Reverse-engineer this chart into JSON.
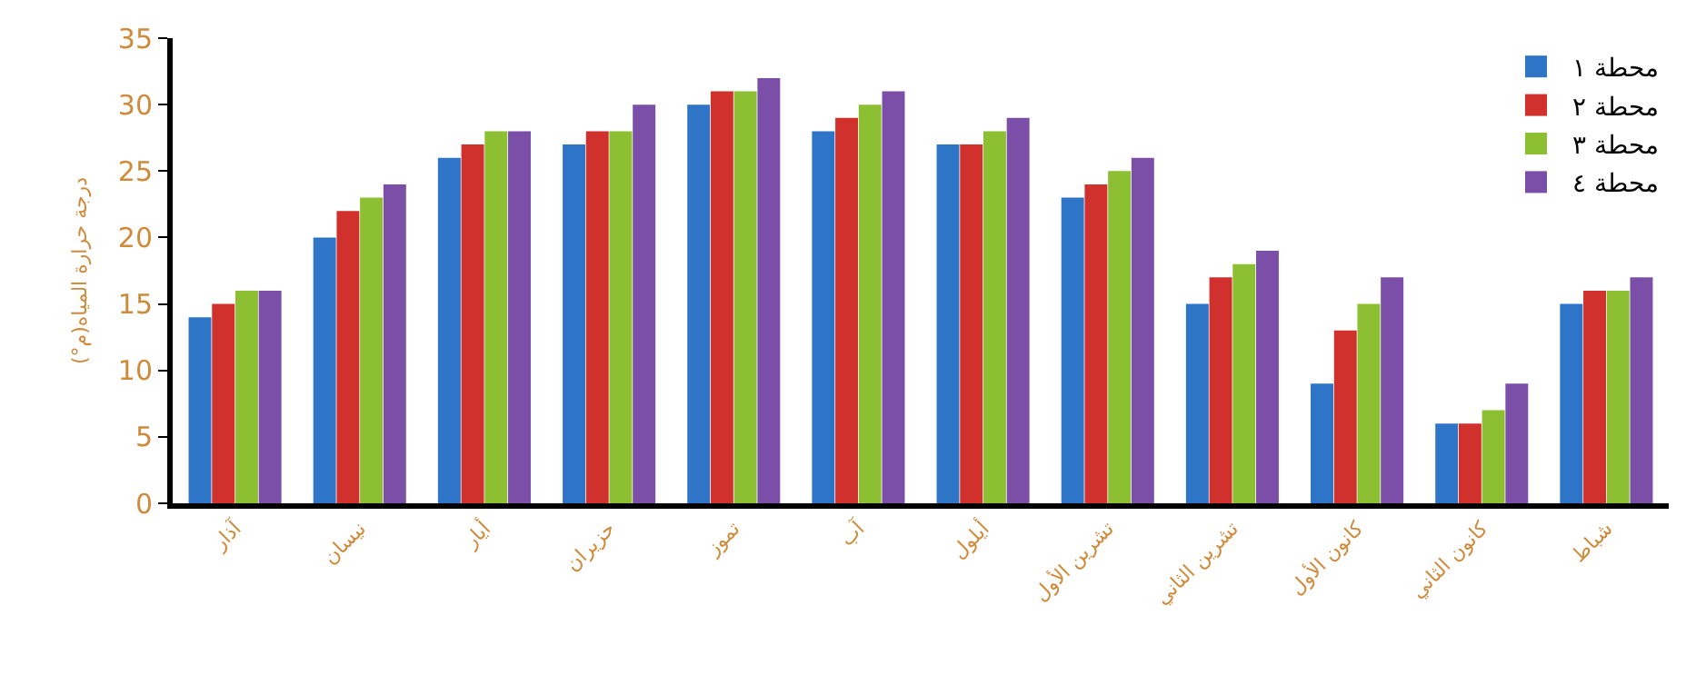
{
  "chart_data": {
    "type": "bar",
    "ylabel": "درجة حرارة المياه(م°)",
    "categories": [
      "آذار",
      "نيسان",
      "أيار",
      "حزيران",
      "تموز",
      "آب",
      "أيلول",
      "تشرين الأول",
      "تشرين الثاني",
      "كانون الأول",
      "كانون الثاني",
      "شباط"
    ],
    "series": [
      {
        "name": "محطة ١",
        "color": "#2e75c8",
        "values": [
          14,
          20,
          26,
          27,
          30,
          28,
          27,
          23,
          15,
          9,
          6,
          15
        ]
      },
      {
        "name": "محطة ٢",
        "color": "#d0312d",
        "values": [
          15,
          22,
          27,
          28,
          31,
          29,
          27,
          24,
          17,
          13,
          6,
          16
        ]
      },
      {
        "name": "محطة ٣",
        "color": "#8cbf32",
        "values": [
          16,
          23,
          28,
          28,
          31,
          30,
          28,
          25,
          18,
          15,
          7,
          16
        ]
      },
      {
        "name": "محطة ٤",
        "color": "#7b4fa8",
        "values": [
          16,
          24,
          28,
          30,
          32,
          31,
          29,
          26,
          19,
          17,
          9,
          17
        ]
      }
    ],
    "ylim": [
      0,
      35
    ],
    "yticks": [
      0,
      5,
      10,
      15,
      20,
      25,
      30,
      35
    ],
    "legend": "top right"
  }
}
